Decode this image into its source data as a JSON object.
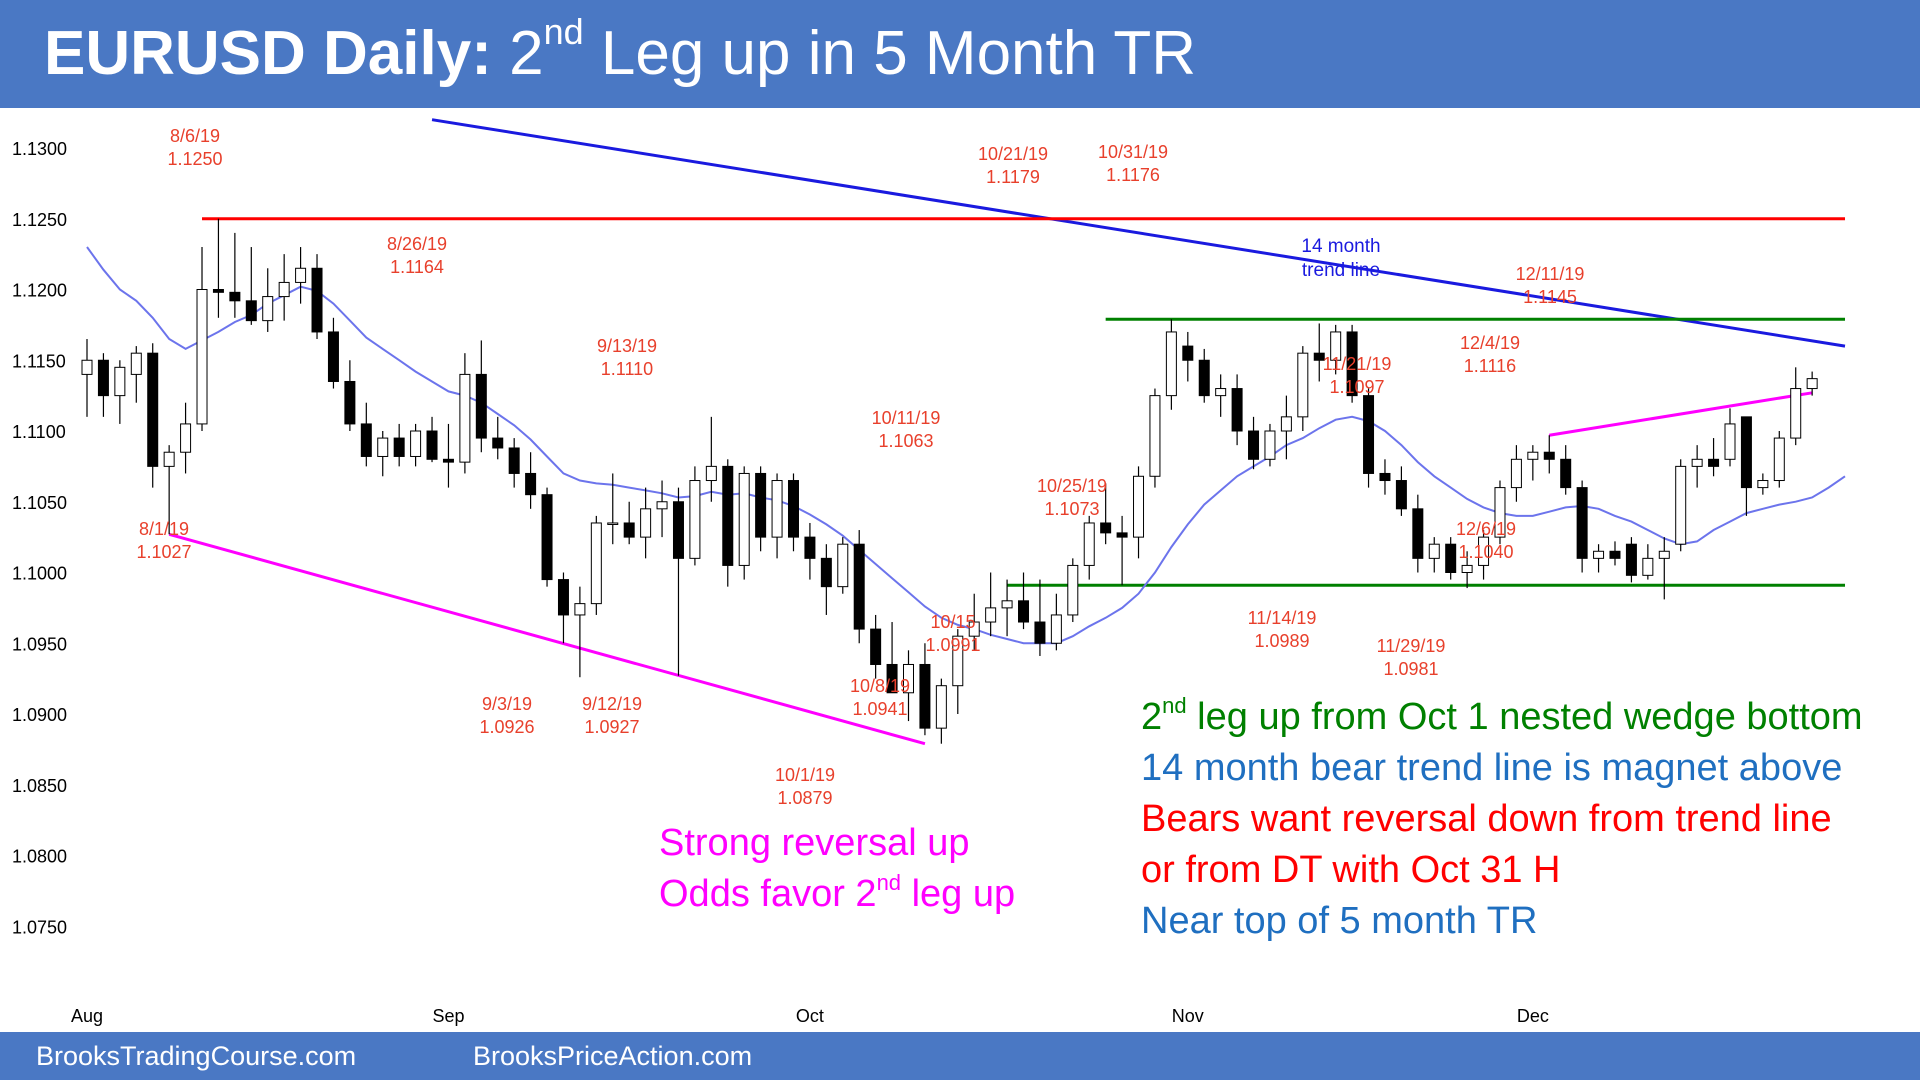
{
  "title": {
    "bold": "EURUSD Daily:",
    "pre": "2",
    "sup": "nd",
    "post": "Leg up in 5 Month TR"
  },
  "footer": {
    "left": "BrooksTradingCourse.com",
    "right": "BrooksPriceAction.com"
  },
  "colors": {
    "header_bg": "#4a78c4",
    "red": "#ff0000",
    "blue": "#1a1adf",
    "magenta": "#ff00ff",
    "green": "#008000",
    "ema": "#6c74ec",
    "annotation": "#e8402c",
    "commentary_blue": "#1f6fc0"
  },
  "chart_data": {
    "type": "candlestick",
    "title": "EURUSD Daily",
    "ylim": [
      1.0725,
      1.1325
    ],
    "yticks": [
      "1.1300",
      "1.1250",
      "1.1200",
      "1.1150",
      "1.1100",
      "1.1050",
      "1.1000",
      "1.0950",
      "1.0900",
      "1.0850",
      "1.0800",
      "1.0750"
    ],
    "x_month_labels": [
      {
        "label": "Aug",
        "index": 0
      },
      {
        "label": "Sep",
        "index": 22
      },
      {
        "label": "Oct",
        "index": 44
      },
      {
        "label": "Nov",
        "index": 67
      },
      {
        "label": "Dec",
        "index": 88
      }
    ],
    "candles": [
      {
        "o": 1.114,
        "h": 1.1165,
        "l": 1.111,
        "c": 1.115
      },
      {
        "o": 1.115,
        "h": 1.1155,
        "l": 1.111,
        "c": 1.1125
      },
      {
        "o": 1.1125,
        "h": 1.115,
        "l": 1.1105,
        "c": 1.1145
      },
      {
        "o": 1.114,
        "h": 1.116,
        "l": 1.112,
        "c": 1.1155
      },
      {
        "o": 1.1155,
        "h": 1.1162,
        "l": 1.106,
        "c": 1.1075
      },
      {
        "o": 1.1075,
        "h": 1.109,
        "l": 1.1027,
        "c": 1.1085
      },
      {
        "o": 1.1085,
        "h": 1.112,
        "l": 1.107,
        "c": 1.1105
      },
      {
        "o": 1.1105,
        "h": 1.123,
        "l": 1.11,
        "c": 1.12
      },
      {
        "o": 1.12,
        "h": 1.125,
        "l": 1.118,
        "c": 1.1198
      },
      {
        "o": 1.1198,
        "h": 1.124,
        "l": 1.118,
        "c": 1.1192
      },
      {
        "o": 1.1192,
        "h": 1.123,
        "l": 1.1175,
        "c": 1.1178
      },
      {
        "o": 1.1178,
        "h": 1.1215,
        "l": 1.117,
        "c": 1.1195
      },
      {
        "o": 1.1195,
        "h": 1.1225,
        "l": 1.1178,
        "c": 1.1205
      },
      {
        "o": 1.1205,
        "h": 1.123,
        "l": 1.119,
        "c": 1.1215
      },
      {
        "o": 1.1215,
        "h": 1.1225,
        "l": 1.1165,
        "c": 1.117
      },
      {
        "o": 1.117,
        "h": 1.118,
        "l": 1.113,
        "c": 1.1135
      },
      {
        "o": 1.1135,
        "h": 1.115,
        "l": 1.11,
        "c": 1.1105
      },
      {
        "o": 1.1105,
        "h": 1.112,
        "l": 1.1075,
        "c": 1.1082
      },
      {
        "o": 1.1082,
        "h": 1.11,
        "l": 1.1068,
        "c": 1.1095
      },
      {
        "o": 1.1095,
        "h": 1.1105,
        "l": 1.1075,
        "c": 1.1082
      },
      {
        "o": 1.1082,
        "h": 1.1105,
        "l": 1.1075,
        "c": 1.11
      },
      {
        "o": 1.11,
        "h": 1.111,
        "l": 1.1078,
        "c": 1.108
      },
      {
        "o": 1.108,
        "h": 1.1105,
        "l": 1.106,
        "c": 1.1078
      },
      {
        "o": 1.1078,
        "h": 1.1155,
        "l": 1.107,
        "c": 1.114
      },
      {
        "o": 1.114,
        "h": 1.1164,
        "l": 1.1085,
        "c": 1.1095
      },
      {
        "o": 1.1095,
        "h": 1.111,
        "l": 1.108,
        "c": 1.1088
      },
      {
        "o": 1.1088,
        "h": 1.1095,
        "l": 1.106,
        "c": 1.107
      },
      {
        "o": 1.107,
        "h": 1.1085,
        "l": 1.1045,
        "c": 1.1055
      },
      {
        "o": 1.1055,
        "h": 1.106,
        "l": 1.099,
        "c": 1.0995
      },
      {
        "o": 1.0995,
        "h": 1.1,
        "l": 1.095,
        "c": 1.097
      },
      {
        "o": 1.097,
        "h": 1.099,
        "l": 1.0926,
        "c": 1.0978
      },
      {
        "o": 1.0978,
        "h": 1.104,
        "l": 1.097,
        "c": 1.1035
      },
      {
        "o": 1.1035,
        "h": 1.107,
        "l": 1.102,
        "c": 1.1035
      },
      {
        "o": 1.1035,
        "h": 1.105,
        "l": 1.102,
        "c": 1.1025
      },
      {
        "o": 1.1025,
        "h": 1.106,
        "l": 1.101,
        "c": 1.1045
      },
      {
        "o": 1.1045,
        "h": 1.1065,
        "l": 1.1025,
        "c": 1.105
      },
      {
        "o": 1.105,
        "h": 1.106,
        "l": 1.0927,
        "c": 1.101
      },
      {
        "o": 1.101,
        "h": 1.1075,
        "l": 1.1005,
        "c": 1.1065
      },
      {
        "o": 1.1065,
        "h": 1.111,
        "l": 1.105,
        "c": 1.1075
      },
      {
        "o": 1.1075,
        "h": 1.108,
        "l": 1.099,
        "c": 1.1005
      },
      {
        "o": 1.1005,
        "h": 1.1075,
        "l": 1.0995,
        "c": 1.107
      },
      {
        "o": 1.107,
        "h": 1.1075,
        "l": 1.1015,
        "c": 1.1025
      },
      {
        "o": 1.1025,
        "h": 1.107,
        "l": 1.101,
        "c": 1.1065
      },
      {
        "o": 1.1065,
        "h": 1.107,
        "l": 1.1015,
        "c": 1.1025
      },
      {
        "o": 1.1025,
        "h": 1.1035,
        "l": 1.0995,
        "c": 1.101
      },
      {
        "o": 1.101,
        "h": 1.102,
        "l": 1.097,
        "c": 1.099
      },
      {
        "o": 1.099,
        "h": 1.1025,
        "l": 1.0985,
        "c": 1.102
      },
      {
        "o": 1.102,
        "h": 1.103,
        "l": 1.095,
        "c": 1.096
      },
      {
        "o": 1.096,
        "h": 1.097,
        "l": 1.0925,
        "c": 1.0935
      },
      {
        "o": 1.0935,
        "h": 1.0965,
        "l": 1.0915,
        "c": 1.0915
      },
      {
        "o": 1.0915,
        "h": 1.0945,
        "l": 1.0895,
        "c": 1.0935
      },
      {
        "o": 1.0935,
        "h": 1.095,
        "l": 1.0885,
        "c": 1.089
      },
      {
        "o": 1.089,
        "h": 1.0925,
        "l": 1.0879,
        "c": 1.092
      },
      {
        "o": 1.092,
        "h": 1.096,
        "l": 1.09,
        "c": 1.0955
      },
      {
        "o": 1.0955,
        "h": 1.0985,
        "l": 1.0945,
        "c": 1.0965
      },
      {
        "o": 1.0965,
        "h": 1.1,
        "l": 1.0955,
        "c": 1.0975
      },
      {
        "o": 1.0975,
        "h": 1.0995,
        "l": 1.0955,
        "c": 1.098
      },
      {
        "o": 1.098,
        "h": 1.1,
        "l": 1.096,
        "c": 1.0965
      },
      {
        "o": 1.0965,
        "h": 1.0995,
        "l": 1.0941,
        "c": 1.095
      },
      {
        "o": 1.095,
        "h": 1.0985,
        "l": 1.0945,
        "c": 1.097
      },
      {
        "o": 1.097,
        "h": 1.101,
        "l": 1.0965,
        "c": 1.1005
      },
      {
        "o": 1.1005,
        "h": 1.104,
        "l": 1.0995,
        "c": 1.1035
      },
      {
        "o": 1.1035,
        "h": 1.1063,
        "l": 1.102,
        "c": 1.1028
      },
      {
        "o": 1.1028,
        "h": 1.104,
        "l": 1.0991,
        "c": 1.1025
      },
      {
        "o": 1.1025,
        "h": 1.1075,
        "l": 1.101,
        "c": 1.1068
      },
      {
        "o": 1.1068,
        "h": 1.113,
        "l": 1.106,
        "c": 1.1125
      },
      {
        "o": 1.1125,
        "h": 1.1179,
        "l": 1.1115,
        "c": 1.117
      },
      {
        "o": 1.116,
        "h": 1.117,
        "l": 1.1135,
        "c": 1.115
      },
      {
        "o": 1.115,
        "h": 1.1158,
        "l": 1.112,
        "c": 1.1125
      },
      {
        "o": 1.1125,
        "h": 1.114,
        "l": 1.111,
        "c": 1.113
      },
      {
        "o": 1.113,
        "h": 1.114,
        "l": 1.109,
        "c": 1.11
      },
      {
        "o": 1.11,
        "h": 1.111,
        "l": 1.1073,
        "c": 1.108
      },
      {
        "o": 1.108,
        "h": 1.1105,
        "l": 1.1075,
        "c": 1.11
      },
      {
        "o": 1.11,
        "h": 1.1125,
        "l": 1.108,
        "c": 1.111
      },
      {
        "o": 1.111,
        "h": 1.116,
        "l": 1.11,
        "c": 1.1155
      },
      {
        "o": 1.1155,
        "h": 1.1176,
        "l": 1.1135,
        "c": 1.115
      },
      {
        "o": 1.115,
        "h": 1.1175,
        "l": 1.114,
        "c": 1.117
      },
      {
        "o": 1.117,
        "h": 1.1175,
        "l": 1.112,
        "c": 1.1125
      },
      {
        "o": 1.1125,
        "h": 1.113,
        "l": 1.106,
        "c": 1.107
      },
      {
        "o": 1.107,
        "h": 1.108,
        "l": 1.1055,
        "c": 1.1065
      },
      {
        "o": 1.1065,
        "h": 1.1075,
        "l": 1.104,
        "c": 1.1045
      },
      {
        "o": 1.1045,
        "h": 1.1055,
        "l": 1.1,
        "c": 1.101
      },
      {
        "o": 1.101,
        "h": 1.1025,
        "l": 1.1,
        "c": 1.102
      },
      {
        "o": 1.102,
        "h": 1.1025,
        "l": 1.0995,
        "c": 1.1
      },
      {
        "o": 1.1,
        "h": 1.1015,
        "l": 1.0989,
        "c": 1.1005
      },
      {
        "o": 1.1005,
        "h": 1.103,
        "l": 1.0995,
        "c": 1.1025
      },
      {
        "o": 1.1025,
        "h": 1.1065,
        "l": 1.102,
        "c": 1.106
      },
      {
        "o": 1.106,
        "h": 1.109,
        "l": 1.105,
        "c": 1.108
      },
      {
        "o": 1.108,
        "h": 1.109,
        "l": 1.1065,
        "c": 1.1085
      },
      {
        "o": 1.1085,
        "h": 1.1097,
        "l": 1.107,
        "c": 1.108
      },
      {
        "o": 1.108,
        "h": 1.109,
        "l": 1.1055,
        "c": 1.106
      },
      {
        "o": 1.106,
        "h": 1.1065,
        "l": 1.1,
        "c": 1.101
      },
      {
        "o": 1.101,
        "h": 1.102,
        "l": 1.1,
        "c": 1.1015
      },
      {
        "o": 1.1015,
        "h": 1.1022,
        "l": 1.1005,
        "c": 1.101
      },
      {
        "o": 1.102,
        "h": 1.1025,
        "l": 1.0993,
        "c": 1.0998
      },
      {
        "o": 1.0998,
        "h": 1.102,
        "l": 1.0995,
        "c": 1.101
      },
      {
        "o": 1.101,
        "h": 1.1025,
        "l": 1.0981,
        "c": 1.1015
      },
      {
        "o": 1.102,
        "h": 1.108,
        "l": 1.1015,
        "c": 1.1075
      },
      {
        "o": 1.1075,
        "h": 1.109,
        "l": 1.106,
        "c": 1.108
      },
      {
        "o": 1.108,
        "h": 1.1095,
        "l": 1.1068,
        "c": 1.1075
      },
      {
        "o": 1.108,
        "h": 1.1116,
        "l": 1.1075,
        "c": 1.1105
      },
      {
        "o": 1.111,
        "h": 1.111,
        "l": 1.104,
        "c": 1.106
      },
      {
        "o": 1.106,
        "h": 1.107,
        "l": 1.1055,
        "c": 1.1065
      },
      {
        "o": 1.1065,
        "h": 1.11,
        "l": 1.106,
        "c": 1.1095
      },
      {
        "o": 1.1095,
        "h": 1.1145,
        "l": 1.109,
        "c": 1.113
      },
      {
        "o": 1.113,
        "h": 1.1142,
        "l": 1.1125,
        "c": 1.1137
      }
    ],
    "ema_20": [
      1.123,
      1.1214,
      1.12,
      1.1192,
      1.118,
      1.1165,
      1.1158,
      1.1164,
      1.117,
      1.1177,
      1.1182,
      1.119,
      1.1196,
      1.1202,
      1.1199,
      1.119,
      1.1178,
      1.1166,
      1.1158,
      1.115,
      1.1142,
      1.1135,
      1.1128,
      1.1125,
      1.112,
      1.1112,
      1.1104,
      1.1094,
      1.1082,
      1.107,
      1.1065,
      1.1063,
      1.1062,
      1.106,
      1.1058,
      1.1056,
      1.1053,
      1.1054,
      1.1057,
      1.1055,
      1.1056,
      1.1053,
      1.1051,
      1.1047,
      1.1041,
      1.1034,
      1.1026,
      1.1016,
      1.1006,
      1.0996,
      1.0986,
      1.0976,
      1.0968,
      1.0963,
      1.096,
      1.0956,
      1.0953,
      1.095,
      1.095,
      1.095,
      1.0955,
      1.0962,
      1.0968,
      1.0975,
      1.0985,
      1.1,
      1.1018,
      1.1034,
      1.1048,
      1.1058,
      1.1068,
      1.1075,
      1.1082,
      1.109,
      1.1095,
      1.1102,
      1.1108,
      1.111,
      1.1107,
      1.11,
      1.109,
      1.1078,
      1.1068,
      1.106,
      1.1052,
      1.1046,
      1.1042,
      1.104,
      1.104,
      1.1043,
      1.1046,
      1.1047,
      1.1045,
      1.104,
      1.1036,
      1.103,
      1.1024,
      1.102,
      1.1022,
      1.103,
      1.1036,
      1.1042,
      1.1045,
      1.1048,
      1.105,
      1.1053,
      1.106,
      1.1068
    ],
    "lines": [
      {
        "name": "14 month trend line",
        "color": "#1a1adf",
        "from": [
          21,
          1.132
        ],
        "to": [
          107,
          1.116
        ]
      },
      {
        "name": "resistance",
        "color": "#ff0000",
        "from": [
          7,
          1.125
        ],
        "to": [
          107,
          1.125
        ]
      },
      {
        "name": "range top",
        "color": "#008000",
        "from": [
          62,
          1.1179
        ],
        "to": [
          107,
          1.1179
        ]
      },
      {
        "name": "range bottom",
        "color": "#008000",
        "from": [
          56,
          1.0991
        ],
        "to": [
          107,
          1.0991
        ]
      },
      {
        "name": "wedge bear channel",
        "color": "#ff00ff",
        "from": [
          5,
          1.1027
        ],
        "to": [
          51,
          1.0879
        ]
      },
      {
        "name": "December trend line",
        "color": "#ff00ff",
        "from": [
          89,
          1.1097
        ],
        "to": [
          105,
          1.1127
        ]
      }
    ],
    "annotations": [
      {
        "id": "a_806",
        "date": "8/6/19",
        "price": "1.1250"
      },
      {
        "id": "a_801",
        "date": "8/1/19",
        "price": "1.1027"
      },
      {
        "id": "a_826",
        "date": "8/26/19",
        "price": "1.1164"
      },
      {
        "id": "a_903",
        "date": "9/3/19",
        "price": "1.0926"
      },
      {
        "id": "a_913",
        "date": "9/13/19",
        "price": "1.1110"
      },
      {
        "id": "a_912",
        "date": "9/12/19",
        "price": "1.0927"
      },
      {
        "id": "a_1001",
        "date": "10/1/19",
        "price": "1.0879"
      },
      {
        "id": "a_1008",
        "date": "10/8/19",
        "price": "1.0941"
      },
      {
        "id": "a_1011",
        "date": "10/11/19",
        "price": "1.1063"
      },
      {
        "id": "a_1015",
        "date": "10/15",
        "price": "1.0991"
      },
      {
        "id": "a_1021",
        "date": "10/21/19",
        "price": "1.1179"
      },
      {
        "id": "a_1025",
        "date": "10/25/19",
        "price": "1.1073"
      },
      {
        "id": "a_1031",
        "date": "10/31/19",
        "price": "1.1176"
      },
      {
        "id": "a_1114",
        "date": "11/14/19",
        "price": "1.0989"
      },
      {
        "id": "a_1121",
        "date": "11/21/19",
        "price": "1.1097"
      },
      {
        "id": "a_1129",
        "date": "11/29/19",
        "price": "1.0981"
      },
      {
        "id": "a_1204",
        "date": "12/4/19",
        "price": "1.1116"
      },
      {
        "id": "a_1206",
        "date": "12/6/19",
        "price": "1.1040"
      },
      {
        "id": "a_1211",
        "date": "12/11/19",
        "price": "1.1145"
      }
    ],
    "trend_line_label": [
      "14 month",
      "trend line"
    ],
    "magenta_note": {
      "line1": "Strong reversal up",
      "line2_pre": "Odds favor 2",
      "line2_sup": "nd",
      "line2_post": " leg up"
    },
    "notes": {
      "green_pre": "2",
      "green_sup": "nd",
      "green_post": " leg up from Oct 1 nested wedge bottom",
      "blue1": "14 month bear trend line is magnet above",
      "red1": "Bears want reversal down from trend line",
      "red2": "or from DT with Oct 31 H",
      "blue2": "Near top of 5 month TR"
    }
  }
}
